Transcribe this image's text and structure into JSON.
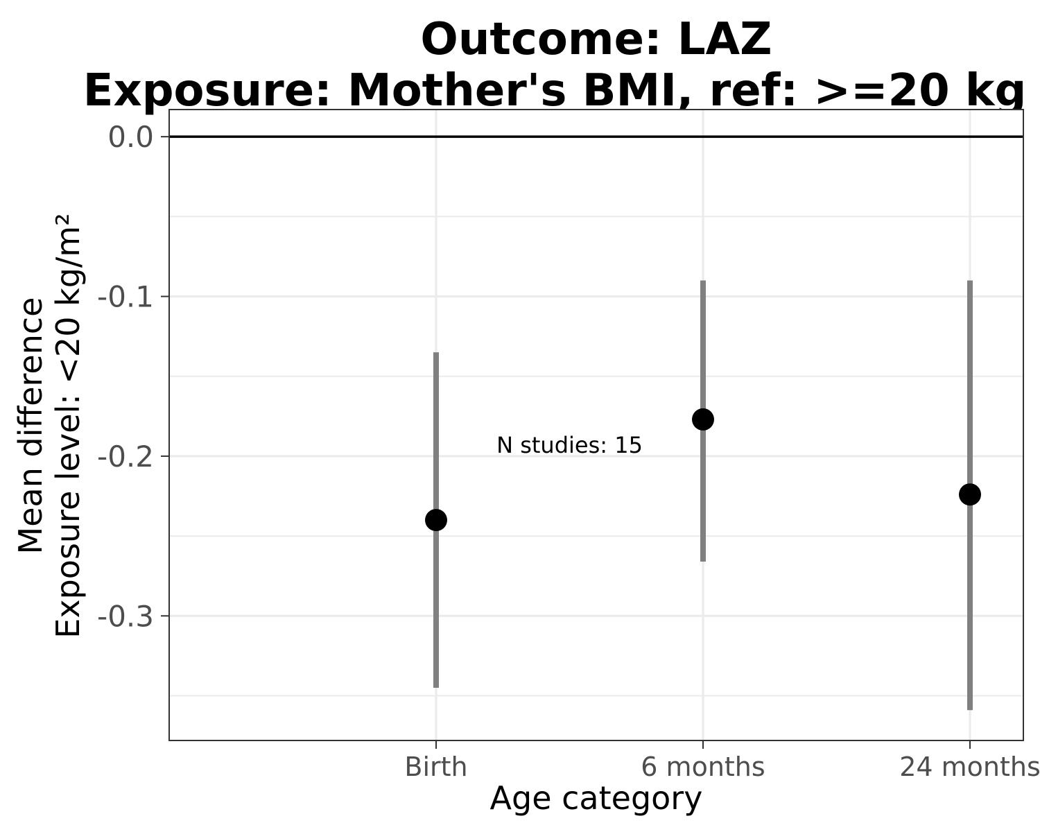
{
  "chart_data": {
    "type": "scatter",
    "title_line1": "Outcome: LAZ",
    "title_line2": "Exposure: Mother's BMI, ref: >=20 kg",
    "xlabel": "Age category",
    "ylabel_line1": "Mean difference",
    "ylabel_line2": "Exposure level: <20 kg/m²",
    "categories": [
      "Birth",
      "6 months",
      "24 months"
    ],
    "estimates": [
      -0.24,
      -0.177,
      -0.224
    ],
    "ci_lower": [
      -0.345,
      -0.266,
      -0.359
    ],
    "ci_upper": [
      -0.135,
      -0.09,
      -0.09
    ],
    "ylim": [
      -0.378,
      0.017
    ],
    "yticks": [
      0.0,
      -0.1,
      -0.2,
      -0.3
    ],
    "ytick_labels": [
      "0.0",
      "-0.1",
      "-0.2",
      "-0.3"
    ],
    "yminor": [
      -0.05,
      -0.15,
      -0.25,
      -0.35
    ],
    "reference_line": 0.0,
    "annotation": {
      "text": "N studies: 15",
      "x_position": 0.5,
      "y": -0.193
    },
    "grid": true,
    "colors": {
      "point": "#000000",
      "ci": "#808080",
      "grid": "#ebebeb",
      "reference": "#000000",
      "border": "#333333"
    }
  }
}
